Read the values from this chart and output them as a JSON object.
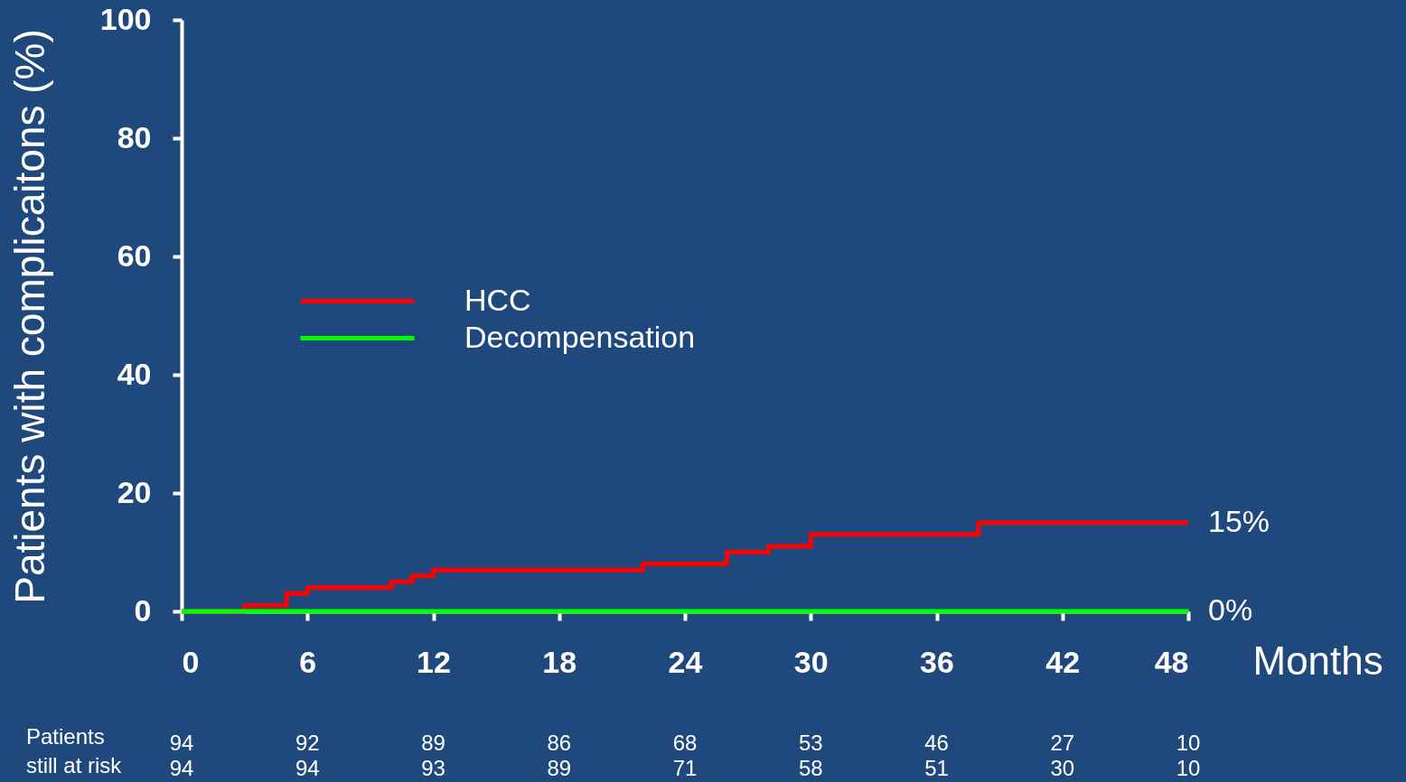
{
  "chart_data": {
    "type": "step",
    "ylabel": "Patients with complicaitons (%)",
    "xlabel": "Months",
    "xlim": [
      0,
      48
    ],
    "xticks": [
      0,
      6,
      12,
      18,
      24,
      30,
      36,
      42,
      48
    ],
    "ylim": [
      0,
      100
    ],
    "yticks": [
      0,
      20,
      40,
      60,
      80,
      100
    ],
    "grid": false,
    "legend": "left",
    "line_style": "solid",
    "series": [
      {
        "name": "HCC",
        "color": "#ff0000",
        "x": [
          0,
          3,
          5,
          6,
          10,
          11,
          12,
          22,
          26,
          28,
          30,
          38,
          48
        ],
        "values": [
          0,
          1,
          3,
          4,
          5,
          6,
          7,
          8,
          10,
          11,
          13,
          15,
          15
        ]
      },
      {
        "name": "Decompensation",
        "color": "#00ff00",
        "x": [
          0,
          48
        ],
        "values": [
          0,
          0
        ]
      }
    ],
    "annotations": [
      {
        "text": "15%",
        "x": 48,
        "y": 15
      },
      {
        "text": "0%",
        "x": 48,
        "y": 0
      },
      "Patients\nstill at risk",
      "94",
      "92",
      "89",
      "86",
      "68",
      "53",
      "46",
      "27",
      "10",
      "94",
      "94",
      "93",
      "89",
      "71",
      "58",
      "51",
      "30",
      "10"
    ]
  }
}
